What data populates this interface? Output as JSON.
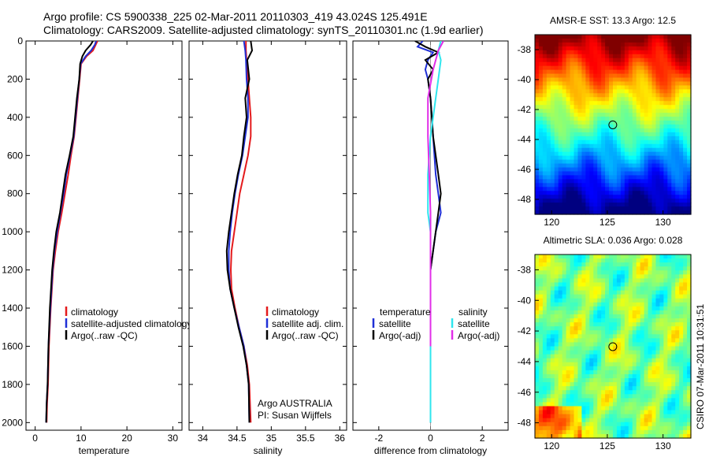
{
  "header": {
    "line1": "Argo profile: CS 5900338_225 02-Mar-2011 20110303_419 43.024S 125.491E",
    "line2": "Climatology: CARS2009. Satellite-adjusted climatology: synTS_20110301.nc (1.9d earlier)"
  },
  "side_stamp": "CSIRO 07-Mar-2011 10:31:51",
  "colors": {
    "red": "#e41a1c",
    "blue": "#1f2fd6",
    "black": "#000000",
    "cyan": "#2fe6ee",
    "magenta": "#e12ee8"
  },
  "chart_data": [
    {
      "id": "temp",
      "type": "line",
      "xlabel": "temperature",
      "xlim": [
        -2,
        32
      ],
      "ylim": [
        2040,
        0
      ],
      "xticks": [
        0,
        10,
        20,
        30
      ],
      "yticks": [
        0,
        200,
        400,
        600,
        800,
        1000,
        1200,
        1400,
        1600,
        1800,
        2000
      ],
      "legend": {
        "placement": "middle-right",
        "items": [
          {
            "label": "climatology",
            "color": "red"
          },
          {
            "label": "satellite-adjusted climatology",
            "color": "blue"
          },
          {
            "label": "Argo(..raw -QC)",
            "color": "black"
          }
        ]
      },
      "series": [
        {
          "name": "climatology",
          "color": "red",
          "x": [
            13.6,
            13.2,
            12.6,
            11.2,
            10.0,
            9.7,
            9.3,
            8.9,
            8.5,
            7.8,
            7.2,
            6.5,
            5.8,
            5.0,
            4.4,
            3.9,
            3.4,
            3.0,
            2.8,
            2.6,
            2.5
          ],
          "y": [
            0,
            20,
            50,
            80,
            120,
            200,
            300,
            400,
            500,
            600,
            700,
            800,
            900,
            1000,
            1100,
            1200,
            1400,
            1600,
            1800,
            1900,
            2000
          ]
        },
        {
          "name": "satellite-adjusted climatology",
          "color": "blue",
          "x": [
            13.3,
            13.0,
            12.2,
            11.0,
            9.9,
            9.6,
            9.2,
            8.8,
            8.4,
            7.6,
            6.8,
            6.2,
            5.5,
            4.8,
            4.2,
            3.8,
            3.3,
            2.9,
            2.7,
            2.5,
            2.4
          ],
          "y": [
            0,
            20,
            50,
            80,
            120,
            200,
            300,
            400,
            500,
            600,
            700,
            800,
            900,
            1000,
            1100,
            1200,
            1400,
            1600,
            1800,
            1900,
            2000
          ]
        },
        {
          "name": "Argo(..raw -QC)",
          "color": "black",
          "x": [
            12.6,
            12.1,
            11.0,
            10.3,
            9.8,
            9.6,
            9.1,
            8.7,
            8.3,
            7.5,
            6.6,
            6.0,
            5.4,
            4.6,
            4.1,
            3.7,
            3.2,
            2.9,
            2.7,
            2.5,
            2.4
          ],
          "y": [
            0,
            20,
            50,
            80,
            120,
            200,
            300,
            400,
            500,
            600,
            700,
            800,
            900,
            1000,
            1100,
            1200,
            1400,
            1600,
            1800,
            1900,
            2000
          ]
        }
      ]
    },
    {
      "id": "sal",
      "type": "line",
      "xlabel": "salinity",
      "xlim": [
        33.8,
        36.1
      ],
      "ylim": [
        2040,
        0
      ],
      "xticks": [
        34,
        34.5,
        35,
        35.5,
        36
      ],
      "legend": {
        "placement": "middle-right",
        "items": [
          {
            "label": "climatology",
            "color": "red"
          },
          {
            "label": "satellite adj. clim.",
            "color": "blue"
          },
          {
            "label": "Argo(..raw -QC)",
            "color": "black"
          }
        ]
      },
      "annotation": [
        "Argo AUSTRALIA",
        "PI: Susan Wijffels"
      ],
      "series": [
        {
          "name": "climatology",
          "color": "red",
          "x": [
            34.63,
            34.63,
            34.64,
            34.66,
            34.68,
            34.7,
            34.7,
            34.66,
            34.6,
            34.54,
            34.5,
            34.46,
            34.42,
            34.41,
            34.42,
            34.47,
            34.53,
            34.6,
            34.65,
            34.68,
            34.7
          ],
          "y": [
            0,
            50,
            100,
            200,
            300,
            400,
            500,
            600,
            700,
            800,
            900,
            1000,
            1100,
            1200,
            1300,
            1400,
            1500,
            1600,
            1700,
            1800,
            2000
          ]
        },
        {
          "name": "satellite adj. clim.",
          "color": "blue",
          "x": [
            34.6,
            34.62,
            34.63,
            34.64,
            34.66,
            34.66,
            34.62,
            34.58,
            34.52,
            34.47,
            34.43,
            34.4,
            34.38,
            34.38,
            34.4,
            34.46,
            34.53,
            34.6,
            34.64,
            34.67,
            34.68
          ],
          "y": [
            0,
            50,
            100,
            200,
            300,
            400,
            500,
            600,
            700,
            800,
            900,
            1000,
            1100,
            1200,
            1300,
            1400,
            1500,
            1600,
            1700,
            1800,
            2000
          ]
        },
        {
          "name": "Argo(..raw -QC)",
          "color": "black",
          "x": [
            34.7,
            34.72,
            34.65,
            34.68,
            34.62,
            34.64,
            34.6,
            34.57,
            34.51,
            34.46,
            34.42,
            34.38,
            34.35,
            34.36,
            34.4,
            34.46,
            34.52,
            34.59,
            34.64,
            34.67,
            34.68
          ],
          "y": [
            0,
            50,
            100,
            200,
            300,
            400,
            500,
            600,
            700,
            800,
            900,
            1000,
            1100,
            1200,
            1300,
            1400,
            1500,
            1600,
            1700,
            1800,
            2000
          ]
        }
      ]
    },
    {
      "id": "diff",
      "type": "line",
      "xlabel": "difference from climatology",
      "xlim": [
        -3.0,
        3.0
      ],
      "ylim": [
        2040,
        0
      ],
      "xticks": [
        -2,
        0,
        2
      ],
      "legend": {
        "placement": "middle",
        "items": [
          {
            "label": "temperature",
            "color": "none"
          },
          {
            "label": "satellite",
            "color": "blue"
          },
          {
            "label": "Argo(-adj)",
            "color": "black"
          },
          {
            "label": "salinity",
            "color": "none"
          },
          {
            "label": "satellite",
            "color": "cyan"
          },
          {
            "label": "Argo(-adj)",
            "color": "magenta"
          }
        ]
      },
      "series": [
        {
          "name": "temperature satellite",
          "color": "blue",
          "x": [
            -0.3,
            -0.5,
            0.1,
            -0.1,
            -0.2,
            -0.1,
            0.0,
            0.1,
            0.2,
            0.3,
            0.4,
            0.2,
            0.1,
            0.0,
            0.0,
            0.0,
            0.0,
            0.0
          ],
          "y": [
            0,
            30,
            60,
            100,
            150,
            200,
            300,
            500,
            700,
            800,
            900,
            1000,
            1100,
            1200,
            1400,
            1600,
            1800,
            2000
          ]
        },
        {
          "name": "temperature Argo(-adj)",
          "color": "black",
          "x": [
            -0.6,
            -0.2,
            0.3,
            -0.2,
            0.1,
            -0.1,
            0.0,
            0.1,
            0.3,
            0.4,
            0.3,
            0.2,
            0.1,
            0.0,
            0.0,
            0.0,
            0.0,
            0.0
          ],
          "y": [
            0,
            30,
            60,
            100,
            150,
            200,
            300,
            500,
            700,
            800,
            900,
            1000,
            1100,
            1200,
            1400,
            1600,
            1800,
            2000
          ]
        },
        {
          "name": "salinity satellite",
          "color": "cyan",
          "x": [
            0.4,
            0.3,
            0.4,
            0.3,
            0.2,
            0.1,
            0.0,
            -0.1,
            -0.1,
            0.0,
            0.0,
            0.0,
            0.0,
            0.0,
            0.0
          ],
          "y": [
            0,
            50,
            100,
            200,
            300,
            400,
            500,
            700,
            900,
            1000,
            1200,
            1400,
            1600,
            1800,
            2000
          ]
        },
        {
          "name": "salinity Argo(-adj)",
          "color": "magenta",
          "x": [
            0.5,
            0.3,
            0.1,
            -0.1,
            -0.1,
            -0.05,
            0.0,
            0.0,
            0.0,
            0.0
          ],
          "y": [
            0,
            50,
            150,
            300,
            500,
            700,
            900,
            1100,
            1400,
            1600
          ]
        }
      ]
    },
    {
      "id": "sst",
      "type": "heatmap",
      "title": "AMSR-E SST: 13.3 Argo: 12.5",
      "xlim": [
        118.5,
        132.5
      ],
      "ylim": [
        -49.0,
        -37.0
      ],
      "xticks": [
        120,
        125,
        130
      ],
      "yticks": [
        -38,
        -40,
        -42,
        -44,
        -46,
        -48
      ],
      "colormap": "jet",
      "range": [
        7,
        18
      ],
      "marker": {
        "lon": 125.491,
        "lat": -43.024
      }
    },
    {
      "id": "sla",
      "type": "heatmap",
      "title": "Altimetric SLA: 0.036 Argo: 0.028",
      "xlim": [
        118.5,
        132.5
      ],
      "ylim": [
        -49.0,
        -37.0
      ],
      "xticks": [
        120,
        125,
        130
      ],
      "yticks": [
        -38,
        -40,
        -42,
        -44,
        -46,
        -48
      ],
      "colormap": "jet",
      "range": [
        -0.3,
        0.3
      ],
      "marker": {
        "lon": 125.491,
        "lat": -43.024
      }
    }
  ]
}
